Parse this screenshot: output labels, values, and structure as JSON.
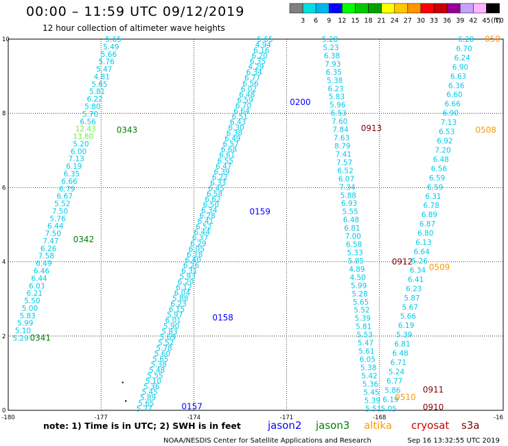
{
  "header": {
    "title": "00:00 – 11:59 UTC 09/12/2019",
    "subtitle": "12 hour collection of altimeter wave heights"
  },
  "colorbar": {
    "unit_label": "(ft)",
    "colors": [
      "#808080",
      "#00e0e0",
      "#00b4f0",
      "#0000ff",
      "#00ff00",
      "#00c800",
      "#00a000",
      "#ffff00",
      "#ffc800",
      "#ff9600",
      "#ff0000",
      "#c80000",
      "#960096",
      "#c8a0ff",
      "#ffb4ff",
      "#000000"
    ],
    "ticks": [
      "3",
      "6",
      "9",
      "12",
      "15",
      "18",
      "21",
      "24",
      "27",
      "30",
      "33",
      "36",
      "39",
      "42",
      "45",
      "70"
    ]
  },
  "footer": {
    "note": "note:  1) Time is in UTC;  2) SWH is in feet",
    "credit": "NOAA/NESDIS Center for Satellite Applications and Research",
    "timestamp": "Sep 16 13:32:55 UTC 2019"
  },
  "chart_data": {
    "type": "scatter",
    "title": "00:00 – 11:59 UTC 09/12/2019",
    "subtitle": "12 hour collection of altimeter wave heights",
    "xlim": [
      -180,
      -164
    ],
    "ylim": [
      0,
      10
    ],
    "x_tick_labels": [
      "-180",
      "-177",
      "-174",
      "-171",
      "-168",
      "-16"
    ],
    "y_tick_labels": [
      "0",
      "2",
      "4",
      "6",
      "8",
      "10"
    ],
    "grid": true,
    "gridlines_x": [
      -177,
      -174,
      -171,
      -168
    ],
    "gridlines_y": [
      2,
      4,
      6,
      8
    ],
    "legend": [
      {
        "name": "jason2",
        "color": "#0000ff"
      },
      {
        "name": "jason3",
        "color": "#008000"
      },
      {
        "name": "altika",
        "color": "#ff9900"
      },
      {
        "name": "cryosat",
        "color": "#cc0000"
      },
      {
        "name": "s3a",
        "color": "#800000"
      }
    ],
    "colors": {
      "swh": "#00c8e8",
      "swh_high": "#66ee44",
      "jason2": "#0000ff",
      "jason3": "#008000",
      "altika": "#ff9900",
      "cryosat": "#cc0000",
      "s3a": "#800000"
    },
    "tracks": [
      {
        "satellite": "jason3",
        "start": [
          -179.6,
          1.95
        ],
        "end": [
          -176.6,
          10.0
        ],
        "swh": [
          "5.29",
          "5.10",
          "5.99",
          "5.83",
          "5.00",
          "5.50",
          "6.21",
          "6.03",
          "6.44",
          "6.46",
          "6.49",
          "7.58",
          "6.26",
          "7.47",
          "7.50",
          "6.44",
          "5.76",
          "7.50",
          "5.52",
          "6.67",
          "6.79",
          "6.66",
          "6.35",
          "6.19",
          "7.13",
          "6.00",
          "5.20",
          "13.80",
          "12.43",
          "6.56",
          "5.70",
          "5.80",
          "6.22",
          "5.81",
          "5.65",
          "4.81",
          "5.47",
          "5.76",
          "5.66",
          "5.49",
          "5.65"
        ],
        "times": [
          {
            "label": "0341",
            "x": -179.3,
            "y": 1.95
          },
          {
            "label": "0342",
            "x": -177.9,
            "y": 4.6
          },
          {
            "label": "0343",
            "x": -176.5,
            "y": 7.55
          }
        ]
      },
      {
        "satellite": "jason2",
        "start": [
          -175.6,
          0.05
        ],
        "end": [
          -171.7,
          10.0
        ],
        "swh": [
          "5.77",
          "5.65",
          "5.89",
          "5.45",
          "5.36",
          "5.10",
          "5.55",
          "5.48",
          "5.38",
          "5.65",
          "5.60",
          "5.78",
          "5.52",
          "5.69",
          "5.83",
          "5.90",
          "6.01",
          "5.97",
          "6.15",
          "6.23",
          "5.88",
          "6.04",
          "6.12",
          "6.20",
          "5.93",
          "6.31",
          "6.26",
          "6.40",
          "6.18",
          "6.05",
          "6.29",
          "6.37",
          "6.44",
          "6.52",
          "6.41",
          "6.28",
          "6.34",
          "6.50",
          "6.62",
          "6.58",
          "6.45",
          "6.33",
          "6.22",
          "6.39",
          "6.47",
          "6.55",
          "6.61",
          "6.68",
          "6.57",
          "6.49",
          "6.38",
          "6.30",
          "6.43",
          "6.51",
          "6.64",
          "6.70",
          "6.59",
          "6.48",
          "6.02",
          "6.56",
          "6.77",
          "6.34",
          "4.29",
          "6.35",
          "6.20",
          "6.16",
          "4.94",
          "5.65"
        ],
        "times": [
          {
            "label": "0157",
            "x": -174.4,
            "y": 0.1
          },
          {
            "label": "0158",
            "x": -173.4,
            "y": 2.5
          },
          {
            "label": "0159",
            "x": -172.2,
            "y": 5.35
          },
          {
            "label": "0200",
            "x": -170.9,
            "y": 8.3
          }
        ]
      },
      {
        "satellite": "cryosat",
        "start": [
          -168.2,
          0.05
        ],
        "end": [
          -169.6,
          10.0
        ],
        "swh": [
          "5.51",
          "5.39",
          "5.45",
          "5.36",
          "5.42",
          "5.38",
          "6.05",
          "5.61",
          "5.47",
          "5.53",
          "5.81",
          "5.39",
          "5.52",
          "5.65",
          "5.28",
          "5.99",
          "4.50",
          "4.89",
          "5.85",
          "5.33",
          "6.58",
          "7.00",
          "6.81",
          "6.48",
          "5.55",
          "6.93",
          "5.88",
          "7.34",
          "6.07",
          "6.52",
          "7.57",
          "7.41",
          "8.79",
          "7.63",
          "7.84",
          "7.60",
          "6.53",
          "5.96",
          "5.83",
          "6.23",
          "5.38",
          "6.35",
          "7.93",
          "6.38",
          "5.23",
          "5.28"
        ],
        "times": [
          {
            "label": "0910",
            "x": -166.6,
            "y": 0.08
          },
          {
            "label": "0911",
            "x": -166.6,
            "y": 0.55
          },
          {
            "label": "0912",
            "x": -167.6,
            "y": 4.0
          },
          {
            "label": "0913",
            "x": -168.6,
            "y": 7.6
          }
        ]
      },
      {
        "satellite": "altika",
        "start": [
          -167.7,
          0.05
        ],
        "end": [
          -165.2,
          10.0
        ],
        "swh": [
          "5.05",
          "6.19",
          "5.86",
          "6.77",
          "5.24",
          "6.71",
          "6.48",
          "6.81",
          "5.39",
          "6.19",
          "5.66",
          "5.67",
          "5.87",
          "6.23",
          "6.41",
          "6.34",
          "5.26",
          "6.64",
          "6.13",
          "6.80",
          "6.87",
          "6.89",
          "6.78",
          "6.31",
          "6.59",
          "6.59",
          "6.56",
          "6.48",
          "7.20",
          "6.92",
          "6.53",
          "7.13",
          "6.90",
          "6.66",
          "6.60",
          "6.36",
          "6.63",
          "6.90",
          "6.24",
          "6.70",
          "6.28"
        ],
        "times": [
          {
            "label": "0508",
            "x": -164.9,
            "y": 7.55
          },
          {
            "label": "0509",
            "x": -166.4,
            "y": 3.85
          },
          {
            "label": "0510",
            "x": -167.5,
            "y": 0.35
          },
          {
            "label": "050",
            "x": -164.6,
            "y": 10.0
          }
        ]
      }
    ],
    "markers": [
      {
        "x": -176.3,
        "y": 0.75
      },
      {
        "x": -176.2,
        "y": 0.25
      }
    ]
  }
}
